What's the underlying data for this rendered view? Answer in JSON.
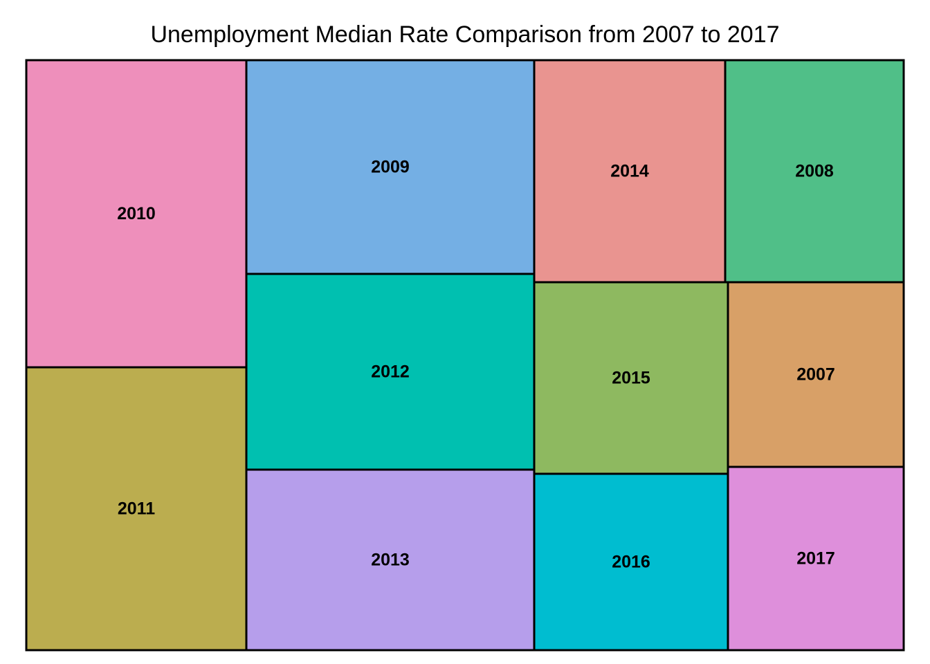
{
  "chart_data": {
    "type": "treemap",
    "title": "Unemployment Median Rate Comparison from 2007 to 2017",
    "tiles": [
      {
        "label": "2010",
        "value": 9.6,
        "color": "#ee8fbb"
      },
      {
        "label": "2011",
        "value": 8.9,
        "color": "#bbad4f"
      },
      {
        "label": "2009",
        "value": 9.3,
        "color": "#74afe4"
      },
      {
        "label": "2012",
        "value": 8.1,
        "color": "#00c0b0"
      },
      {
        "label": "2013",
        "value": 7.4,
        "color": "#b69eeb"
      },
      {
        "label": "2014",
        "value": 6.2,
        "color": "#e99490"
      },
      {
        "label": "2015",
        "value": 5.3,
        "color": "#8eb960"
      },
      {
        "label": "2016",
        "value": 4.9,
        "color": "#00bdd0"
      },
      {
        "label": "2008",
        "value": 5.8,
        "color": "#50bf88"
      },
      {
        "label": "2007",
        "value": 4.6,
        "color": "#d8a067"
      },
      {
        "label": "2017",
        "value": 4.4,
        "color": "#de8fdb"
      }
    ]
  }
}
